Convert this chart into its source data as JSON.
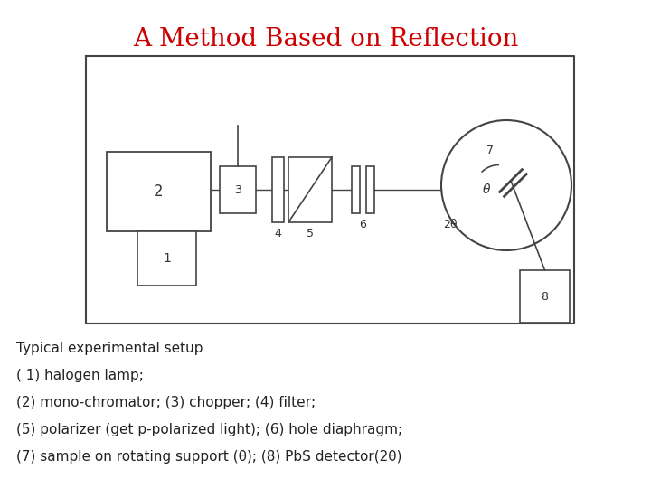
{
  "title": "A Method Based on Reflection",
  "title_color": "#cc0000",
  "title_fontsize": 20,
  "bg_color": "#ffffff",
  "caption_lines": [
    "Typical experimental setup",
    "( 1) halogen lamp;",
    "(2) mono-chromator; (3) chopper; (4) filter;",
    "(5) polarizer (get p-polarized light); (6) hole diaphragm;",
    "(7) sample on rotating support (θ); (8) PbS detector(2θ)"
  ],
  "caption_fontsize": 11,
  "caption_color": "#222222",
  "edge_color": "#444444",
  "line_color": "#444444"
}
